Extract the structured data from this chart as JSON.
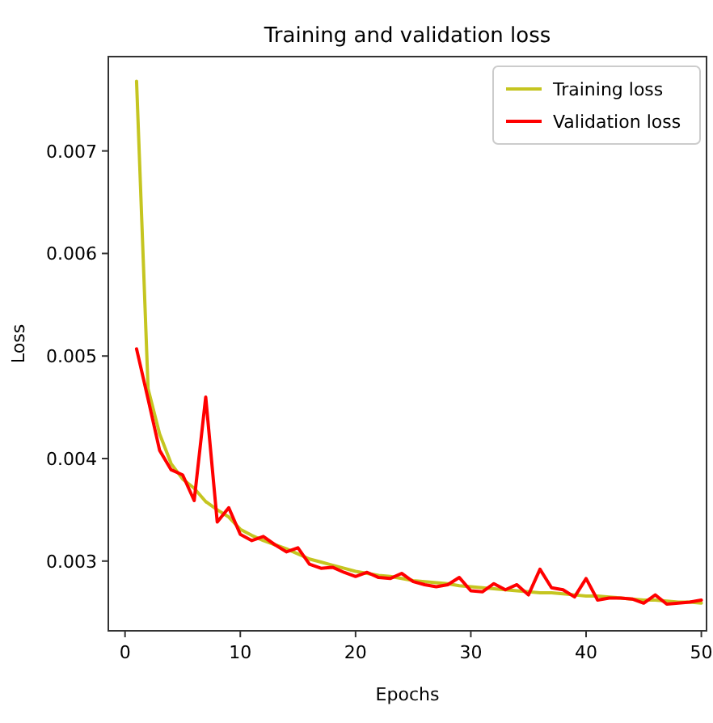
{
  "chart_data": {
    "type": "line",
    "title": "Training and validation loss",
    "xlabel": "Epochs",
    "ylabel": "Loss",
    "x": [
      1,
      2,
      3,
      4,
      5,
      6,
      7,
      8,
      9,
      10,
      11,
      12,
      13,
      14,
      15,
      16,
      17,
      18,
      19,
      20,
      21,
      22,
      23,
      24,
      25,
      26,
      27,
      28,
      29,
      30,
      31,
      32,
      33,
      34,
      35,
      36,
      37,
      38,
      39,
      40,
      41,
      42,
      43,
      44,
      45,
      46,
      47,
      48,
      49,
      50
    ],
    "xlim": [
      -1.45,
      50.45
    ],
    "xticks": [
      0,
      10,
      20,
      30,
      40,
      50
    ],
    "ylim": [
      0.00232,
      0.00792
    ],
    "yticks": [
      0.003,
      0.004,
      0.005,
      0.006,
      0.007
    ],
    "grid": false,
    "legend": "top right",
    "marker": "none",
    "line_style": "solid",
    "series": [
      {
        "name": "Training loss",
        "color": "#c5c520",
        "values": [
          0.00768,
          0.00468,
          0.00424,
          0.00395,
          0.0038,
          0.00371,
          0.00358,
          0.0035,
          0.00343,
          0.00331,
          0.00325,
          0.0032,
          0.00316,
          0.00312,
          0.00307,
          0.00302,
          0.00299,
          0.00296,
          0.00293,
          0.0029,
          0.00288,
          0.00286,
          0.00285,
          0.00283,
          0.00281,
          0.0028,
          0.00279,
          0.00278,
          0.00276,
          0.00275,
          0.00274,
          0.00273,
          0.00272,
          0.00271,
          0.0027,
          0.00269,
          0.00269,
          0.00268,
          0.00267,
          0.00266,
          0.00266,
          0.00265,
          0.00264,
          0.00263,
          0.00262,
          0.00262,
          0.00261,
          0.0026,
          0.0026,
          0.00259
        ]
      },
      {
        "name": "Validation loss",
        "color": "#ff0000",
        "values": [
          0.00507,
          0.00458,
          0.00408,
          0.00389,
          0.00384,
          0.00359,
          0.0046,
          0.00338,
          0.00352,
          0.00326,
          0.0032,
          0.00324,
          0.00316,
          0.00309,
          0.00313,
          0.00297,
          0.00293,
          0.00294,
          0.00289,
          0.00285,
          0.00289,
          0.00284,
          0.00283,
          0.00288,
          0.0028,
          0.00277,
          0.00275,
          0.00277,
          0.00284,
          0.00271,
          0.0027,
          0.00278,
          0.00272,
          0.00277,
          0.00267,
          0.00292,
          0.00274,
          0.00272,
          0.00265,
          0.00283,
          0.00262,
          0.00264,
          0.00264,
          0.00263,
          0.00259,
          0.00267,
          0.00258,
          0.00259,
          0.0026,
          0.00262
        ]
      }
    ]
  }
}
